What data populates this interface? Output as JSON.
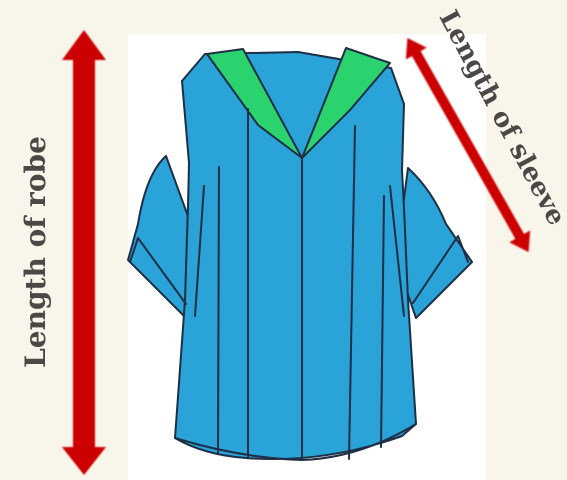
{
  "diagram": {
    "labels": {
      "robe_length": "Length of robe",
      "sleeve_length": "Length of sleeve"
    },
    "colors": {
      "background": "#f8f5ea",
      "panel": "#ffffff",
      "robe": "#2aa3d8",
      "collar": "#2bd36f",
      "seams": "#1e2f45",
      "arrows": "#cc0000",
      "text": "#4d4848"
    },
    "icons": {
      "garment": "graduation-robe-icon",
      "robe_measure": "double-arrow-icon",
      "sleeve_measure": "double-arrow-icon"
    }
  }
}
